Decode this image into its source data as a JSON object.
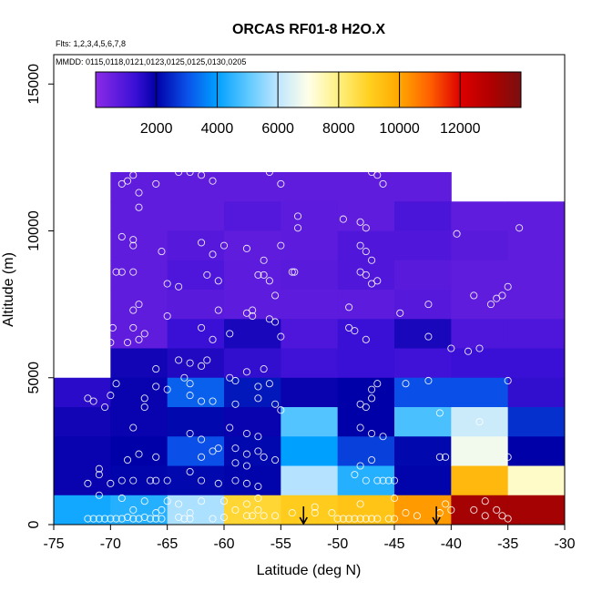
{
  "chart_data": {
    "type": "heatmap",
    "title": "ORCAS RF01-8 H2O.X",
    "subtitle_lines": [
      "Flts: 1,2,3,4,5,6,7,8",
      "MMDD: 0115,0118,0121,0123,0125,0125,0130,0205"
    ],
    "xlabel": "Latitude (deg N)",
    "ylabel": "Altitude (m)",
    "xlim": [
      -75,
      -30
    ],
    "ylim": [
      0,
      16000
    ],
    "xticks": [
      -75,
      -70,
      -65,
      -60,
      -55,
      -50,
      -45,
      -40,
      -35,
      -30
    ],
    "yticks": [
      0,
      5000,
      10000,
      15000
    ],
    "colorbar": {
      "min": 0,
      "max": 14000,
      "ticks": [
        2000,
        4000,
        6000,
        8000,
        10000,
        12000
      ],
      "stops": [
        {
          "v": 0,
          "c": "#8b2be6"
        },
        {
          "v": 1300,
          "c": "#3a10d6"
        },
        {
          "v": 2000,
          "c": "#0000a8"
        },
        {
          "v": 3000,
          "c": "#0a50e8"
        },
        {
          "v": 4000,
          "c": "#00a0ff"
        },
        {
          "v": 5000,
          "c": "#5cc8ff"
        },
        {
          "v": 6000,
          "c": "#bfe6ff"
        },
        {
          "v": 7000,
          "c": "#ffffe8"
        },
        {
          "v": 8000,
          "c": "#fff080"
        },
        {
          "v": 9000,
          "c": "#ffd020"
        },
        {
          "v": 10000,
          "c": "#ffa800"
        },
        {
          "v": 11000,
          "c": "#ff6000"
        },
        {
          "v": 12000,
          "c": "#dd0000"
        },
        {
          "v": 13000,
          "c": "#b00000"
        },
        {
          "v": 14000,
          "c": "#7a1010"
        }
      ]
    },
    "cell_size": {
      "lat": 5,
      "alt": 1000
    },
    "cells": [
      [
        -75,
        4000,
        1500
      ],
      [
        -75,
        3000,
        1800
      ],
      [
        -75,
        2000,
        1900
      ],
      [
        -75,
        1000,
        1900
      ],
      [
        -75,
        0,
        4200
      ],
      [
        -70,
        11000,
        700
      ],
      [
        -70,
        10000,
        700
      ],
      [
        -70,
        9000,
        700
      ],
      [
        -70,
        8000,
        700
      ],
      [
        -70,
        7000,
        700
      ],
      [
        -70,
        6000,
        700
      ],
      [
        -70,
        5000,
        1800
      ],
      [
        -70,
        4000,
        1900
      ],
      [
        -70,
        3000,
        1900
      ],
      [
        -70,
        2000,
        2000
      ],
      [
        -70,
        1000,
        2050
      ],
      [
        -70,
        0,
        4400
      ],
      [
        -65,
        11000,
        700
      ],
      [
        -65,
        10000,
        700
      ],
      [
        -65,
        9000,
        850
      ],
      [
        -65,
        8000,
        1000
      ],
      [
        -65,
        7000,
        800
      ],
      [
        -65,
        6000,
        1300
      ],
      [
        -65,
        5000,
        1600
      ],
      [
        -65,
        4000,
        3200
      ],
      [
        -65,
        3000,
        2100
      ],
      [
        -65,
        2000,
        3000
      ],
      [
        -65,
        1000,
        2100
      ],
      [
        -65,
        0,
        5800
      ],
      [
        -60,
        11000,
        700
      ],
      [
        -60,
        10000,
        900
      ],
      [
        -60,
        9000,
        700
      ],
      [
        -60,
        8000,
        750
      ],
      [
        -60,
        7000,
        750
      ],
      [
        -60,
        6000,
        1700
      ],
      [
        -60,
        5000,
        1400
      ],
      [
        -60,
        4000,
        2300
      ],
      [
        -60,
        3000,
        1900
      ],
      [
        -60,
        2000,
        2100
      ],
      [
        -60,
        1000,
        2050
      ],
      [
        -60,
        0,
        8800
      ],
      [
        -55,
        11000,
        700
      ],
      [
        -55,
        10000,
        750
      ],
      [
        -55,
        9000,
        750
      ],
      [
        -55,
        8000,
        800
      ],
      [
        -55,
        7000,
        750
      ],
      [
        -55,
        6000,
        1000
      ],
      [
        -55,
        5000,
        1200
      ],
      [
        -55,
        4000,
        1900
      ],
      [
        -55,
        3000,
        4900
      ],
      [
        -55,
        2000,
        4000
      ],
      [
        -55,
        1000,
        5900
      ],
      [
        -55,
        0,
        9100
      ],
      [
        -50,
        11000,
        700
      ],
      [
        -50,
        10000,
        700
      ],
      [
        -50,
        9000,
        950
      ],
      [
        -50,
        8000,
        950
      ],
      [
        -50,
        7000,
        750
      ],
      [
        -50,
        6000,
        1300
      ],
      [
        -50,
        5000,
        1300
      ],
      [
        -50,
        4000,
        2000
      ],
      [
        -50,
        3000,
        2000
      ],
      [
        -50,
        2000,
        2800
      ],
      [
        -50,
        1000,
        4400
      ],
      [
        -50,
        0,
        9300
      ],
      [
        -45,
        11000,
        700
      ],
      [
        -45,
        10000,
        1050
      ],
      [
        -45,
        9000,
        950
      ],
      [
        -45,
        8000,
        800
      ],
      [
        -45,
        7000,
        850
      ],
      [
        -45,
        6000,
        1700
      ],
      [
        -45,
        5000,
        1200
      ],
      [
        -45,
        4000,
        3000
      ],
      [
        -45,
        3000,
        4800
      ],
      [
        -45,
        2000,
        2100
      ],
      [
        -45,
        1000,
        2050
      ],
      [
        -45,
        0,
        10200
      ],
      [
        -40,
        10000,
        700
      ],
      [
        -40,
        9000,
        800
      ],
      [
        -40,
        8000,
        700
      ],
      [
        -40,
        7000,
        700
      ],
      [
        -40,
        6000,
        1000
      ],
      [
        -40,
        5000,
        1300
      ],
      [
        -40,
        4000,
        3000
      ],
      [
        -40,
        3000,
        6200
      ],
      [
        -40,
        2000,
        6800
      ],
      [
        -40,
        1000,
        9600
      ],
      [
        -40,
        0,
        13200
      ],
      [
        -35,
        10000,
        700
      ],
      [
        -35,
        9000,
        700
      ],
      [
        -35,
        8000,
        700
      ],
      [
        -35,
        7000,
        700
      ],
      [
        -35,
        6000,
        1000
      ],
      [
        -35,
        5000,
        1300
      ],
      [
        -35,
        4000,
        1400
      ],
      [
        -35,
        3000,
        2600
      ],
      [
        -35,
        2000,
        2000
      ],
      [
        -35,
        1000,
        7300
      ],
      [
        -35,
        0,
        13200
      ]
    ],
    "markers": [
      {
        "lat": -53,
        "label": "down-arrow"
      },
      {
        "lat": -41.3,
        "label": "down-arrow"
      }
    ],
    "points": [
      [
        -68,
        11900
      ],
      [
        -68.5,
        11700
      ],
      [
        -69,
        11600
      ],
      [
        -66,
        11600
      ],
      [
        -64,
        12000
      ],
      [
        -63,
        12000
      ],
      [
        -62,
        11900
      ],
      [
        -61,
        11700
      ],
      [
        -56,
        12000
      ],
      [
        -55,
        11600
      ],
      [
        -47,
        12000
      ],
      [
        -46.5,
        11900
      ],
      [
        -46,
        11600
      ],
      [
        -67.5,
        11300
      ],
      [
        -67.5,
        10800
      ],
      [
        -53.5,
        10500
      ],
      [
        -53.5,
        10100
      ],
      [
        -49.5,
        10400
      ],
      [
        -48,
        10300
      ],
      [
        -47.5,
        10100
      ],
      [
        -39.5,
        9900
      ],
      [
        -34,
        10100
      ],
      [
        -69,
        9800
      ],
      [
        -68,
        9700
      ],
      [
        -68,
        9500
      ],
      [
        -65.5,
        9300
      ],
      [
        -62,
        9600
      ],
      [
        -61,
        9200
      ],
      [
        -60,
        9500
      ],
      [
        -58,
        9400
      ],
      [
        -56.5,
        9000
      ],
      [
        -55,
        9500
      ],
      [
        -48,
        9500
      ],
      [
        -47.5,
        9300
      ],
      [
        -47,
        9000
      ],
      [
        -69.5,
        8600
      ],
      [
        -69,
        8600
      ],
      [
        -68,
        8600
      ],
      [
        -61.5,
        8500
      ],
      [
        -60.5,
        8300
      ],
      [
        -57,
        8500
      ],
      [
        -56.5,
        8500
      ],
      [
        -56,
        8300
      ],
      [
        -54,
        8600
      ],
      [
        -53.8,
        8600
      ],
      [
        -48,
        8600
      ],
      [
        -47.5,
        8500
      ],
      [
        -46.5,
        8300
      ],
      [
        -47,
        8200
      ],
      [
        -65,
        8200
      ],
      [
        -64,
        8100
      ],
      [
        -55.5,
        7800
      ],
      [
        -35,
        8100
      ],
      [
        -67.5,
        7500
      ],
      [
        -68,
        7300
      ],
      [
        -71,
        7100
      ],
      [
        -65,
        7100
      ],
      [
        -60.5,
        7300
      ],
      [
        -58,
        7200
      ],
      [
        -57.5,
        7100
      ],
      [
        -57.5,
        7300
      ],
      [
        -56,
        7000
      ],
      [
        -55.5,
        6900
      ],
      [
        -49,
        7400
      ],
      [
        -44.5,
        7200
      ],
      [
        -42,
        7500
      ],
      [
        -38,
        7800
      ],
      [
        -35.5,
        7800
      ],
      [
        -36,
        7700
      ],
      [
        -36.5,
        7500
      ],
      [
        -69.8,
        6700
      ],
      [
        -68,
        6700
      ],
      [
        -67,
        6500
      ],
      [
        -67.5,
        6300
      ],
      [
        -70,
        6200
      ],
      [
        -68.5,
        6200
      ],
      [
        -62,
        6700
      ],
      [
        -61,
        6300
      ],
      [
        -59.5,
        6500
      ],
      [
        -55,
        6400
      ],
      [
        -48.5,
        6600
      ],
      [
        -47.5,
        6300
      ],
      [
        -49,
        6700
      ],
      [
        -42,
        6400
      ],
      [
        -40,
        6000
      ],
      [
        -38.5,
        5900
      ],
      [
        -37.5,
        6000
      ],
      [
        -64,
        5600
      ],
      [
        -63,
        5500
      ],
      [
        -62,
        5400
      ],
      [
        -61.5,
        5600
      ],
      [
        -63.5,
        5000
      ],
      [
        -63,
        4800
      ],
      [
        -66,
        5300
      ],
      [
        -66,
        4700
      ],
      [
        -65,
        4600
      ],
      [
        -59.5,
        5000
      ],
      [
        -59,
        4900
      ],
      [
        -58,
        5200
      ],
      [
        -56.5,
        5300
      ],
      [
        -56,
        4800
      ],
      [
        -57,
        4700
      ],
      [
        -46.5,
        4800
      ],
      [
        -47,
        4600
      ],
      [
        -44,
        4800
      ],
      [
        -42,
        4900
      ],
      [
        -35,
        4900
      ],
      [
        -72,
        4300
      ],
      [
        -71.5,
        4200
      ],
      [
        -70,
        4400
      ],
      [
        -69.5,
        4800
      ],
      [
        -70.5,
        4000
      ],
      [
        -67,
        4300
      ],
      [
        -67,
        4000
      ],
      [
        -62,
        4200
      ],
      [
        -63,
        4400
      ],
      [
        -61,
        4200
      ],
      [
        -59,
        4100
      ],
      [
        -57,
        4300
      ],
      [
        -55,
        3900
      ],
      [
        -55.5,
        4100
      ],
      [
        -48,
        4100
      ],
      [
        -47,
        4300
      ],
      [
        -47.5,
        4000
      ],
      [
        -41,
        3800
      ],
      [
        -37.5,
        3500
      ],
      [
        -68,
        3300
      ],
      [
        -63,
        3100
      ],
      [
        -62,
        2900
      ],
      [
        -59.5,
        3300
      ],
      [
        -58,
        3100
      ],
      [
        -57,
        3000
      ],
      [
        -48,
        3300
      ],
      [
        -47,
        3100
      ],
      [
        -46,
        3000
      ],
      [
        -67.5,
        2400
      ],
      [
        -68.5,
        2200
      ],
      [
        -66,
        2300
      ],
      [
        -62,
        2300
      ],
      [
        -61,
        2500
      ],
      [
        -60.5,
        2600
      ],
      [
        -59,
        2600
      ],
      [
        -58,
        2400
      ],
      [
        -57,
        2500
      ],
      [
        -56.5,
        2300
      ],
      [
        -55.5,
        2200
      ],
      [
        -59,
        2100
      ],
      [
        -58,
        2000
      ],
      [
        -48,
        2000
      ],
      [
        -47,
        2200
      ],
      [
        -41,
        2300
      ],
      [
        -40.5,
        2300
      ],
      [
        -35,
        2300
      ],
      [
        -71,
        1900
      ],
      [
        -71,
        1700
      ],
      [
        -72,
        1400
      ],
      [
        -70,
        1400
      ],
      [
        -69,
        1500
      ],
      [
        -68,
        1500
      ],
      [
        -66.5,
        1500
      ],
      [
        -66,
        1500
      ],
      [
        -65,
        1500
      ],
      [
        -63,
        1800
      ],
      [
        -62,
        1500
      ],
      [
        -60.5,
        1400
      ],
      [
        -59,
        1500
      ],
      [
        -58,
        1400
      ],
      [
        -57,
        1300
      ],
      [
        -48.5,
        1700
      ],
      [
        -47.5,
        1500
      ],
      [
        -46.5,
        1500
      ],
      [
        -46,
        1500
      ],
      [
        -45.5,
        1500
      ],
      [
        -45,
        1500
      ],
      [
        -71,
        1000
      ],
      [
        -69,
        900
      ],
      [
        -67,
        800
      ],
      [
        -65,
        800
      ],
      [
        -64,
        700
      ],
      [
        -62,
        800
      ],
      [
        -60,
        800
      ],
      [
        -58,
        700
      ],
      [
        -57,
        900
      ],
      [
        -52,
        600
      ],
      [
        -48,
        700
      ],
      [
        -45,
        900
      ],
      [
        -40.5,
        700
      ],
      [
        -37,
        800
      ],
      [
        -38,
        500
      ],
      [
        -72,
        200
      ],
      [
        -71.5,
        200
      ],
      [
        -71,
        200
      ],
      [
        -70.5,
        200
      ],
      [
        -70,
        200
      ],
      [
        -69.5,
        200
      ],
      [
        -69,
        200
      ],
      [
        -68.5,
        250
      ],
      [
        -68,
        200
      ],
      [
        -67.5,
        200
      ],
      [
        -67,
        250
      ],
      [
        -66.5,
        200
      ],
      [
        -66,
        200
      ],
      [
        -65.5,
        200
      ],
      [
        -64,
        250
      ],
      [
        -63.5,
        200
      ],
      [
        -63,
        200
      ],
      [
        -61,
        200
      ],
      [
        -60,
        250
      ],
      [
        -58,
        300
      ],
      [
        -57.5,
        300
      ],
      [
        -56.5,
        300
      ],
      [
        -55.5,
        300
      ],
      [
        -50,
        200
      ],
      [
        -49.5,
        200
      ],
      [
        -49,
        200
      ],
      [
        -48.5,
        200
      ],
      [
        -48,
        200
      ],
      [
        -47.5,
        200
      ],
      [
        -47,
        200
      ],
      [
        -46.5,
        200
      ],
      [
        -45.5,
        200
      ],
      [
        -45,
        200
      ],
      [
        -43,
        300
      ],
      [
        -41,
        400
      ],
      [
        -37,
        300
      ],
      [
        -35.5,
        300
      ],
      [
        -35,
        200
      ],
      [
        -68,
        500
      ],
      [
        -66,
        400
      ],
      [
        -65.5,
        500
      ],
      [
        -63,
        400
      ],
      [
        -59,
        500
      ],
      [
        -57,
        500
      ],
      [
        -54,
        400
      ],
      [
        -52,
        400
      ],
      [
        -50.5,
        400
      ],
      [
        -44,
        400
      ],
      [
        -40,
        500
      ],
      [
        -36,
        500
      ]
    ]
  }
}
